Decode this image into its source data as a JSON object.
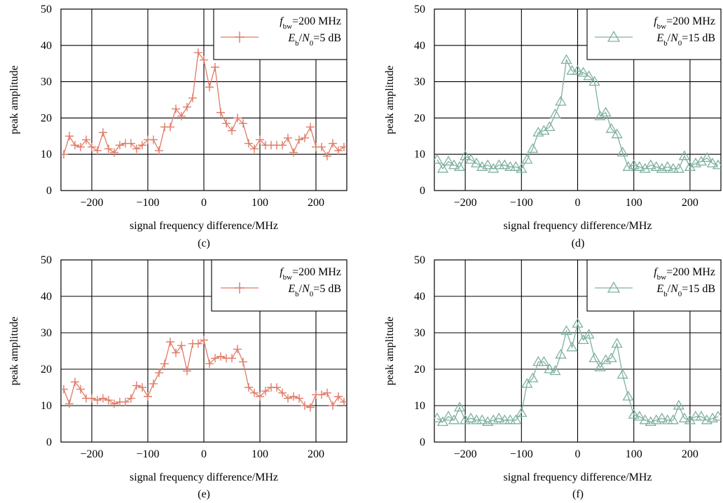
{
  "chart_data": [
    {
      "type": "line",
      "panel_label": "(c)",
      "xlabel": "signal frequency difference/MHz",
      "ylabel": "peak amplitude",
      "xlim": [
        -255,
        255
      ],
      "ylim": [
        0,
        50
      ],
      "xticks": [
        -200,
        -100,
        0,
        100,
        200
      ],
      "yticks": [
        0,
        10,
        20,
        30,
        40,
        50
      ],
      "tick_labels_x": [
        "−200",
        "−100",
        "0",
        "100",
        "200"
      ],
      "tick_labels_y": [
        "0",
        "10",
        "20",
        "30",
        "40",
        "50"
      ],
      "grid": true,
      "legend_position": "top-right",
      "legend": {
        "sym1": "f",
        "sub1": "bw",
        "rest1": "=200 MHz",
        "sym2a": "E",
        "sub2a": "b",
        "slash": "/",
        "sym2b": "N",
        "sub2b": "0",
        "rest2": "=5 dB"
      },
      "series": [
        {
          "color": "#e07a66",
          "marker": "plus",
          "x": [
            -250,
            -240,
            -230,
            -220,
            -210,
            -200,
            -190,
            -180,
            -170,
            -160,
            -150,
            -140,
            -130,
            -120,
            -110,
            -100,
            -90,
            -80,
            -70,
            -60,
            -50,
            -40,
            -30,
            -20,
            -10,
            0,
            10,
            20,
            30,
            40,
            50,
            60,
            70,
            80,
            90,
            100,
            110,
            120,
            130,
            140,
            150,
            160,
            170,
            180,
            190,
            200,
            210,
            220,
            230,
            240,
            250
          ],
          "y": [
            10,
            15,
            12.5,
            12,
            14,
            12,
            11,
            16,
            11.5,
            10.5,
            12.5,
            13,
            13,
            11.5,
            12.5,
            14,
            14,
            11,
            17.5,
            17.5,
            22.5,
            20.5,
            23,
            25.5,
            38,
            36,
            28.5,
            34,
            21.5,
            18.5,
            16.5,
            20,
            18.5,
            13,
            11.5,
            14,
            12.5,
            12.5,
            12.5,
            12.5,
            14.5,
            10.5,
            14,
            14.5,
            17.5,
            12,
            12,
            9.5,
            13,
            11,
            12
          ]
        }
      ]
    },
    {
      "type": "line",
      "panel_label": "(d)",
      "xlabel": "signal frequency difference/MHz",
      "ylabel": "peak amplitude",
      "xlim": [
        -255,
        255
      ],
      "ylim": [
        0,
        50
      ],
      "xticks": [
        -200,
        -100,
        0,
        100,
        200
      ],
      "yticks": [
        0,
        10,
        20,
        30,
        40,
        50
      ],
      "tick_labels_x": [
        "−200",
        "−100",
        "0",
        "100",
        "200"
      ],
      "tick_labels_y": [
        "0",
        "10",
        "20",
        "30",
        "40",
        "50"
      ],
      "grid": true,
      "legend_position": "top-right",
      "legend": {
        "sym1": "f",
        "sub1": "bw",
        "rest1": "=200 MHz",
        "sym2a": "E",
        "sub2a": "b",
        "slash": "/",
        "sym2b": "N",
        "sub2b": "0",
        "rest2": "=15 dB"
      },
      "series": [
        {
          "color": "#7fb0a2",
          "marker": "triangle",
          "x": [
            -250,
            -240,
            -230,
            -220,
            -210,
            -200,
            -190,
            -180,
            -170,
            -160,
            -150,
            -140,
            -130,
            -120,
            -110,
            -100,
            -90,
            -80,
            -70,
            -60,
            -50,
            -40,
            -30,
            -20,
            -10,
            0,
            10,
            20,
            30,
            40,
            50,
            60,
            70,
            80,
            90,
            100,
            110,
            120,
            130,
            140,
            150,
            160,
            170,
            180,
            190,
            200,
            210,
            220,
            230,
            240,
            250
          ],
          "y": [
            8.5,
            6,
            8,
            7,
            6.5,
            9.5,
            8.5,
            7.5,
            6.5,
            7,
            6,
            7,
            7,
            6.5,
            6.5,
            6,
            8.5,
            11.5,
            16,
            16.5,
            17.5,
            21,
            24.5,
            36,
            33,
            33,
            32.5,
            31.5,
            30,
            20.5,
            21.5,
            17,
            15.5,
            10.5,
            6.5,
            7,
            6.5,
            6,
            7,
            6.5,
            6,
            6.5,
            6,
            6,
            9.5,
            6.5,
            7.5,
            8,
            9,
            7.5,
            7
          ]
        }
      ]
    },
    {
      "type": "line",
      "panel_label": "(e)",
      "xlabel": "signal frequency difference/MHz",
      "ylabel": "peak amplitude",
      "xlim": [
        -255,
        255
      ],
      "ylim": [
        0,
        50
      ],
      "xticks": [
        -200,
        -100,
        0,
        100,
        200
      ],
      "yticks": [
        0,
        10,
        20,
        30,
        40,
        50
      ],
      "tick_labels_x": [
        "−200",
        "−100",
        "0",
        "100",
        "200"
      ],
      "tick_labels_y": [
        "0",
        "10",
        "20",
        "30",
        "40",
        "50"
      ],
      "grid": true,
      "legend_position": "top-right",
      "legend": {
        "sym1": "f",
        "sub1": "bw",
        "rest1": "=200 MHz",
        "sym2a": "E",
        "sub2a": "b",
        "slash": "/",
        "sym2b": "N",
        "sub2b": "0",
        "rest2": "=5 dB"
      },
      "series": [
        {
          "color": "#e07a66",
          "marker": "plus",
          "x": [
            -250,
            -240,
            -230,
            -220,
            -210,
            -200,
            -190,
            -180,
            -170,
            -160,
            -150,
            -140,
            -130,
            -120,
            -110,
            -100,
            -90,
            -80,
            -70,
            -60,
            -50,
            -40,
            -30,
            -20,
            -10,
            0,
            10,
            20,
            30,
            40,
            50,
            60,
            70,
            80,
            90,
            100,
            110,
            120,
            130,
            140,
            150,
            160,
            170,
            180,
            190,
            200,
            210,
            220,
            230,
            240,
            250
          ],
          "y": [
            14.5,
            10.5,
            16.5,
            14.5,
            12,
            12,
            11.5,
            12,
            11.5,
            10.5,
            11,
            11,
            12,
            15.5,
            15,
            12.5,
            16,
            19,
            21.5,
            27.5,
            24.5,
            26.5,
            19.5,
            27,
            27,
            28,
            21.5,
            23,
            23.5,
            23,
            23,
            25.5,
            22,
            15,
            13.5,
            12.5,
            14,
            15,
            15,
            13.5,
            12,
            12.5,
            12,
            10,
            9.5,
            13,
            13,
            13.5,
            10,
            12.5,
            11
          ]
        }
      ]
    },
    {
      "type": "line",
      "panel_label": "(f)",
      "xlabel": "signal frequency difference/MHz",
      "ylabel": "peak amplitude",
      "xlim": [
        -255,
        255
      ],
      "ylim": [
        0,
        50
      ],
      "xticks": [
        -200,
        -100,
        0,
        100,
        200
      ],
      "yticks": [
        0,
        10,
        20,
        30,
        40,
        50
      ],
      "tick_labels_x": [
        "−200",
        "−100",
        "0",
        "100",
        "200"
      ],
      "tick_labels_y": [
        "0",
        "10",
        "20",
        "30",
        "40",
        "50"
      ],
      "grid": true,
      "legend_position": "top-right",
      "legend": {
        "sym1": "f",
        "sub1": "bw",
        "rest1": "=200 MHz",
        "sym2a": "E",
        "sub2a": "b",
        "slash": "/",
        "sym2b": "N",
        "sub2b": "0",
        "rest2": "=15 dB"
      },
      "series": [
        {
          "color": "#7fb0a2",
          "marker": "triangle",
          "x": [
            -250,
            -240,
            -230,
            -220,
            -210,
            -200,
            -190,
            -180,
            -170,
            -160,
            -150,
            -140,
            -130,
            -120,
            -110,
            -100,
            -90,
            -80,
            -70,
            -60,
            -50,
            -40,
            -30,
            -20,
            -10,
            0,
            10,
            20,
            30,
            40,
            50,
            60,
            70,
            80,
            90,
            100,
            110,
            120,
            130,
            140,
            150,
            160,
            170,
            180,
            190,
            200,
            210,
            220,
            230,
            240,
            250
          ],
          "y": [
            6.5,
            5.5,
            7,
            6,
            9.5,
            6,
            6.5,
            6,
            6,
            5.5,
            6,
            6.5,
            6,
            6,
            6,
            8,
            16,
            17.5,
            22,
            22,
            20,
            19.5,
            24,
            30.5,
            26,
            32.5,
            28,
            29.5,
            23,
            20.5,
            22.5,
            23,
            27,
            18.5,
            12.5,
            7.5,
            7,
            6,
            5.5,
            6,
            6.5,
            6,
            6,
            10,
            6.5,
            6,
            7,
            7,
            6,
            6.5,
            7
          ]
        }
      ]
    }
  ]
}
